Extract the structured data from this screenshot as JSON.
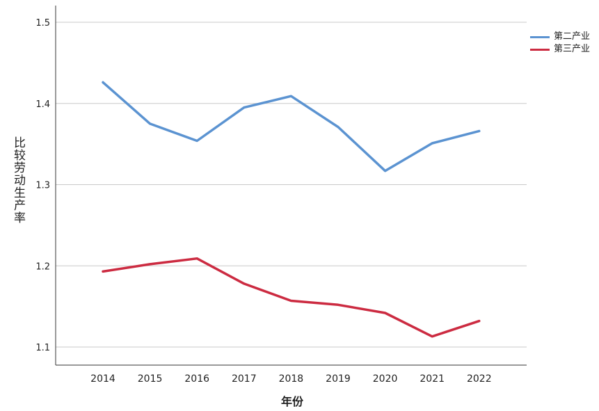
{
  "chart_data": {
    "type": "line",
    "title": "",
    "xlabel": "年份",
    "ylabel": "比较劳动生产率",
    "categories": [
      "2014",
      "2015",
      "2016",
      "2017",
      "2018",
      "2019",
      "2020",
      "2021",
      "2022"
    ],
    "ylim": [
      1.1,
      1.5
    ],
    "yticks": [
      "1.1",
      "1.2",
      "1.3",
      "1.4",
      "1.5"
    ],
    "ytick_values": [
      1.1,
      1.2,
      1.3,
      1.4,
      1.5
    ],
    "grid": "horizontal",
    "legend": "top-right",
    "series": [
      {
        "name": "第二产业",
        "color": "#5b93d1",
        "values": [
          1.426,
          1.375,
          1.354,
          1.395,
          1.409,
          1.371,
          1.317,
          1.351,
          1.366
        ]
      },
      {
        "name": "第三产业",
        "color": "#cc2b41",
        "values": [
          1.193,
          1.202,
          1.209,
          1.178,
          1.157,
          1.152,
          1.142,
          1.113,
          1.132
        ]
      }
    ]
  }
}
